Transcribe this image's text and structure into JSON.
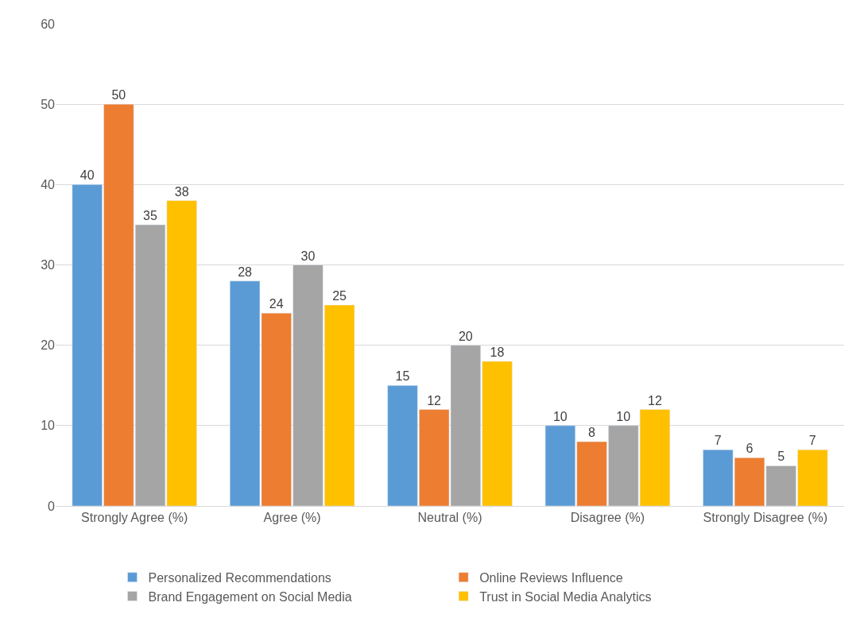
{
  "chart_data": {
    "type": "bar",
    "categories": [
      "Strongly Agree (%)",
      "Agree (%)",
      "Neutral (%)",
      "Disagree (%)",
      "Strongly Disagree (%)"
    ],
    "series": [
      {
        "name": "Personalized Recommendations",
        "color": "#5b9bd5",
        "values": [
          40,
          28,
          15,
          10,
          7
        ]
      },
      {
        "name": "Online Reviews Influence",
        "color": "#ed7d31",
        "values": [
          50,
          24,
          12,
          8,
          6
        ]
      },
      {
        "name": "Brand Engagement on Social Media",
        "color": "#a5a5a5",
        "values": [
          35,
          30,
          20,
          10,
          5
        ]
      },
      {
        "name": "Trust in Social Media Analytics",
        "color": "#ffc000",
        "values": [
          38,
          25,
          18,
          12,
          7
        ]
      }
    ],
    "ylim": [
      0,
      60
    ],
    "yticks": [
      0,
      10,
      20,
      30,
      40,
      50,
      60
    ],
    "grid": "y",
    "legend": "bottom",
    "data_labels": true
  }
}
